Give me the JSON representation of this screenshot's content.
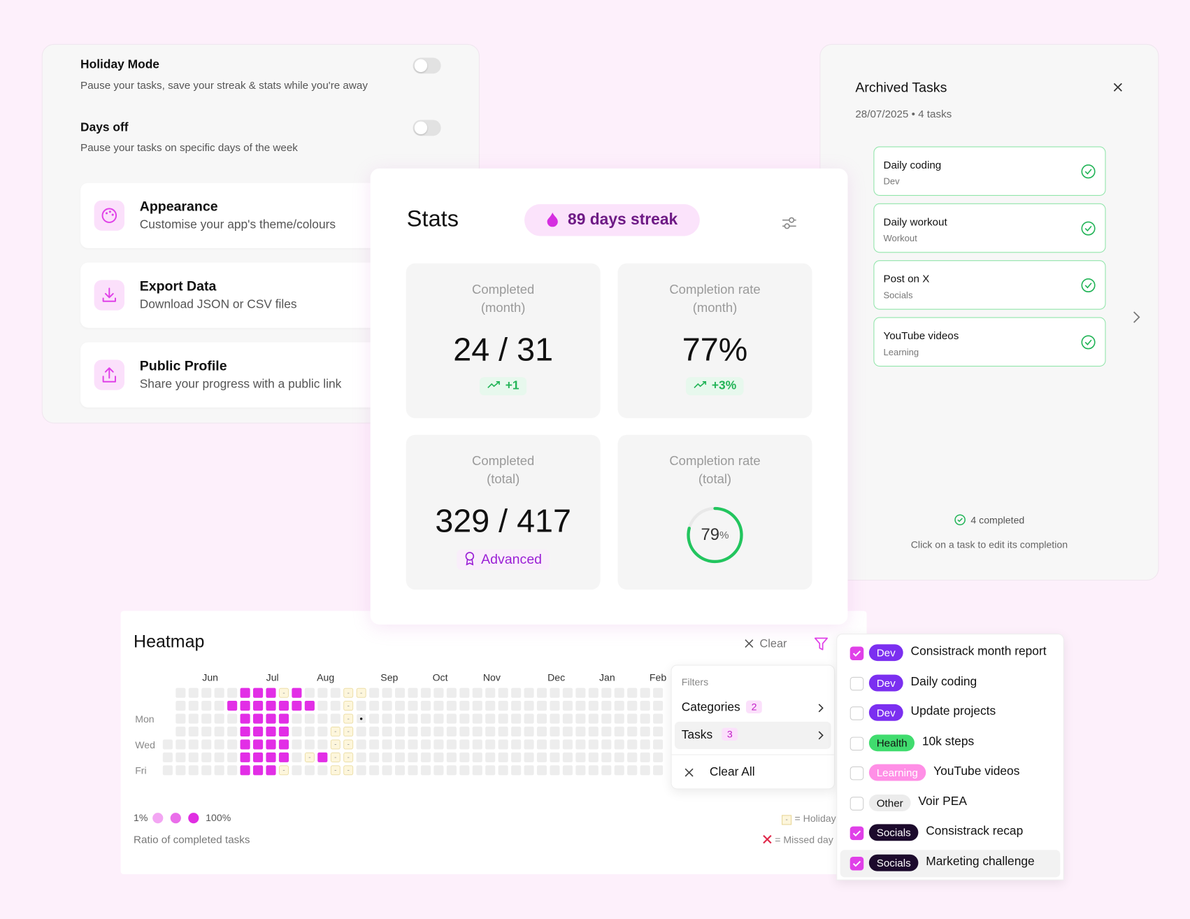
{
  "settings": {
    "toggles": [
      {
        "title": "Holiday Mode",
        "description": "Pause your tasks, save your streak & stats while you're away",
        "enabled": false
      },
      {
        "title": "Days off",
        "description": "Pause your tasks on specific days of the week",
        "enabled": false
      }
    ],
    "items": [
      {
        "title": "Appearance",
        "description": "Customise your app's theme/colours"
      },
      {
        "title": "Export Data",
        "description": "Download JSON or CSV files"
      },
      {
        "title": "Public Profile",
        "description": "Share your progress with a public link"
      }
    ]
  },
  "archived": {
    "title": "Archived Tasks",
    "subtitle": "28/07/2025 • 4 tasks",
    "tasks": [
      {
        "name": "Daily coding",
        "category": "Dev"
      },
      {
        "name": "Daily workout",
        "category": "Workout"
      },
      {
        "name": "Post on X",
        "category": "Socials"
      },
      {
        "name": "YouTube videos",
        "category": "Learning"
      }
    ],
    "completed": "4 completed",
    "hint": "Click on a task to edit its completion"
  },
  "stats": {
    "title": "Stats",
    "streak": "89 days streak",
    "tiles": [
      {
        "label": "Completed",
        "sublabel": "(month)",
        "value": "24 / 31",
        "badge": "+1"
      },
      {
        "label": "Completion rate",
        "sublabel": "(month)",
        "value": "77%",
        "badge": "+3%"
      },
      {
        "label": "Completed",
        "sublabel": "(total)",
        "value": "329 / 417",
        "badge": "Advanced"
      },
      {
        "label": "Completion rate",
        "sublabel": "(total)",
        "value": 79,
        "unit": "%"
      }
    ]
  },
  "heatmap": {
    "title": "Heatmap",
    "clear": "Clear",
    "months": [
      "Jun",
      "Jul",
      "Aug",
      "Sep",
      "Oct",
      "Nov",
      "Dec",
      "Jan",
      "Feb"
    ],
    "days": [
      "Mon",
      "Wed",
      "Fri"
    ],
    "rows": [
      [
        null,
        0,
        0,
        0,
        0,
        0,
        100,
        100,
        100,
        "-",
        100,
        0,
        0,
        0,
        "-",
        "-",
        0,
        0,
        0,
        0,
        0,
        0,
        0,
        0,
        0,
        0,
        0,
        0,
        0,
        0,
        0,
        0,
        0,
        0,
        0,
        0,
        0,
        0,
        0
      ],
      [
        null,
        0,
        0,
        0,
        0,
        100,
        100,
        100,
        100,
        100,
        100,
        100,
        0,
        0,
        "-",
        0,
        0,
        0,
        0,
        0,
        0,
        0,
        0,
        0,
        0,
        0,
        0,
        0,
        0,
        0,
        0,
        0,
        0,
        0,
        0,
        0,
        0,
        0,
        0
      ],
      [
        null,
        0,
        0,
        0,
        0,
        0,
        100,
        100,
        100,
        100,
        0,
        0,
        0,
        0,
        "-",
        "•",
        0,
        0,
        0,
        0,
        0,
        0,
        0,
        0,
        0,
        0,
        0,
        0,
        0,
        0,
        0,
        0,
        0,
        0,
        0,
        0,
        0,
        0,
        0
      ],
      [
        null,
        0,
        0,
        0,
        0,
        0,
        100,
        100,
        100,
        100,
        0,
        0,
        0,
        "-",
        "-",
        0,
        0,
        0,
        0,
        0,
        0,
        0,
        0,
        0,
        0,
        0,
        0,
        0,
        0,
        0,
        0,
        0,
        0,
        0,
        0,
        0,
        0,
        0,
        0
      ],
      [
        0,
        0,
        0,
        0,
        0,
        0,
        100,
        100,
        100,
        100,
        0,
        0,
        0,
        "-",
        "-",
        0,
        0,
        0,
        0,
        0,
        0,
        0,
        0,
        0,
        0,
        0,
        0,
        0,
        0,
        0,
        0,
        0,
        0,
        0,
        0,
        0,
        0,
        0,
        0
      ],
      [
        0,
        0,
        0,
        0,
        0,
        0,
        100,
        100,
        100,
        100,
        0,
        "-",
        100,
        "-",
        "-",
        0,
        0,
        0,
        0,
        0,
        0,
        0,
        0,
        0,
        0,
        0,
        0,
        0,
        0,
        0,
        0,
        0,
        0,
        0,
        0,
        0,
        0,
        0,
        0
      ],
      [
        0,
        0,
        0,
        0,
        0,
        0,
        100,
        100,
        100,
        "-",
        0,
        0,
        0,
        "-",
        "-",
        0,
        0,
        0,
        0,
        0,
        0,
        0,
        0,
        0,
        0,
        0,
        0,
        0,
        0,
        0,
        0,
        0,
        0,
        0,
        0,
        0,
        0,
        0,
        0
      ]
    ],
    "cell_color": "#e22ee6",
    "legend_min": "1%",
    "legend_max": "100%",
    "legend_colors": [
      "#f3a6f3",
      "#ea6eea",
      "#e02ee2"
    ],
    "caption": "Ratio of completed tasks",
    "holiday_key": "-",
    "holiday_label": "= Holiday",
    "missed_label": "= Missed day"
  },
  "filters": {
    "heading": "Filters",
    "options": [
      {
        "label": "Categories",
        "count": 2
      },
      {
        "label": "Tasks",
        "count": 3
      }
    ],
    "clear_all": "Clear All"
  },
  "task_filter": {
    "items": [
      {
        "tag": "Dev",
        "color": "#7b2ff0",
        "name": "Consistrack month report",
        "checked": true
      },
      {
        "tag": "Dev",
        "color": "#7b2ff0",
        "name": "Daily coding",
        "checked": false
      },
      {
        "tag": "Dev",
        "color": "#7b2ff0",
        "name": "Update projects",
        "checked": false
      },
      {
        "tag": "Health",
        "color": "#40dc6e",
        "name": "10k steps",
        "checked": false
      },
      {
        "tag": "Learning",
        "color": "#ff8fe6",
        "name": "YouTube videos",
        "checked": false
      },
      {
        "tag": "Other",
        "color": "#ececec",
        "name": "Voir PEA",
        "checked": false
      },
      {
        "tag": "Socials",
        "color": "#1c0a2c",
        "name": "Consistrack recap",
        "checked": true
      },
      {
        "tag": "Socials",
        "color": "#1c0a2c",
        "name": "Marketing challenge",
        "checked": true
      }
    ]
  }
}
